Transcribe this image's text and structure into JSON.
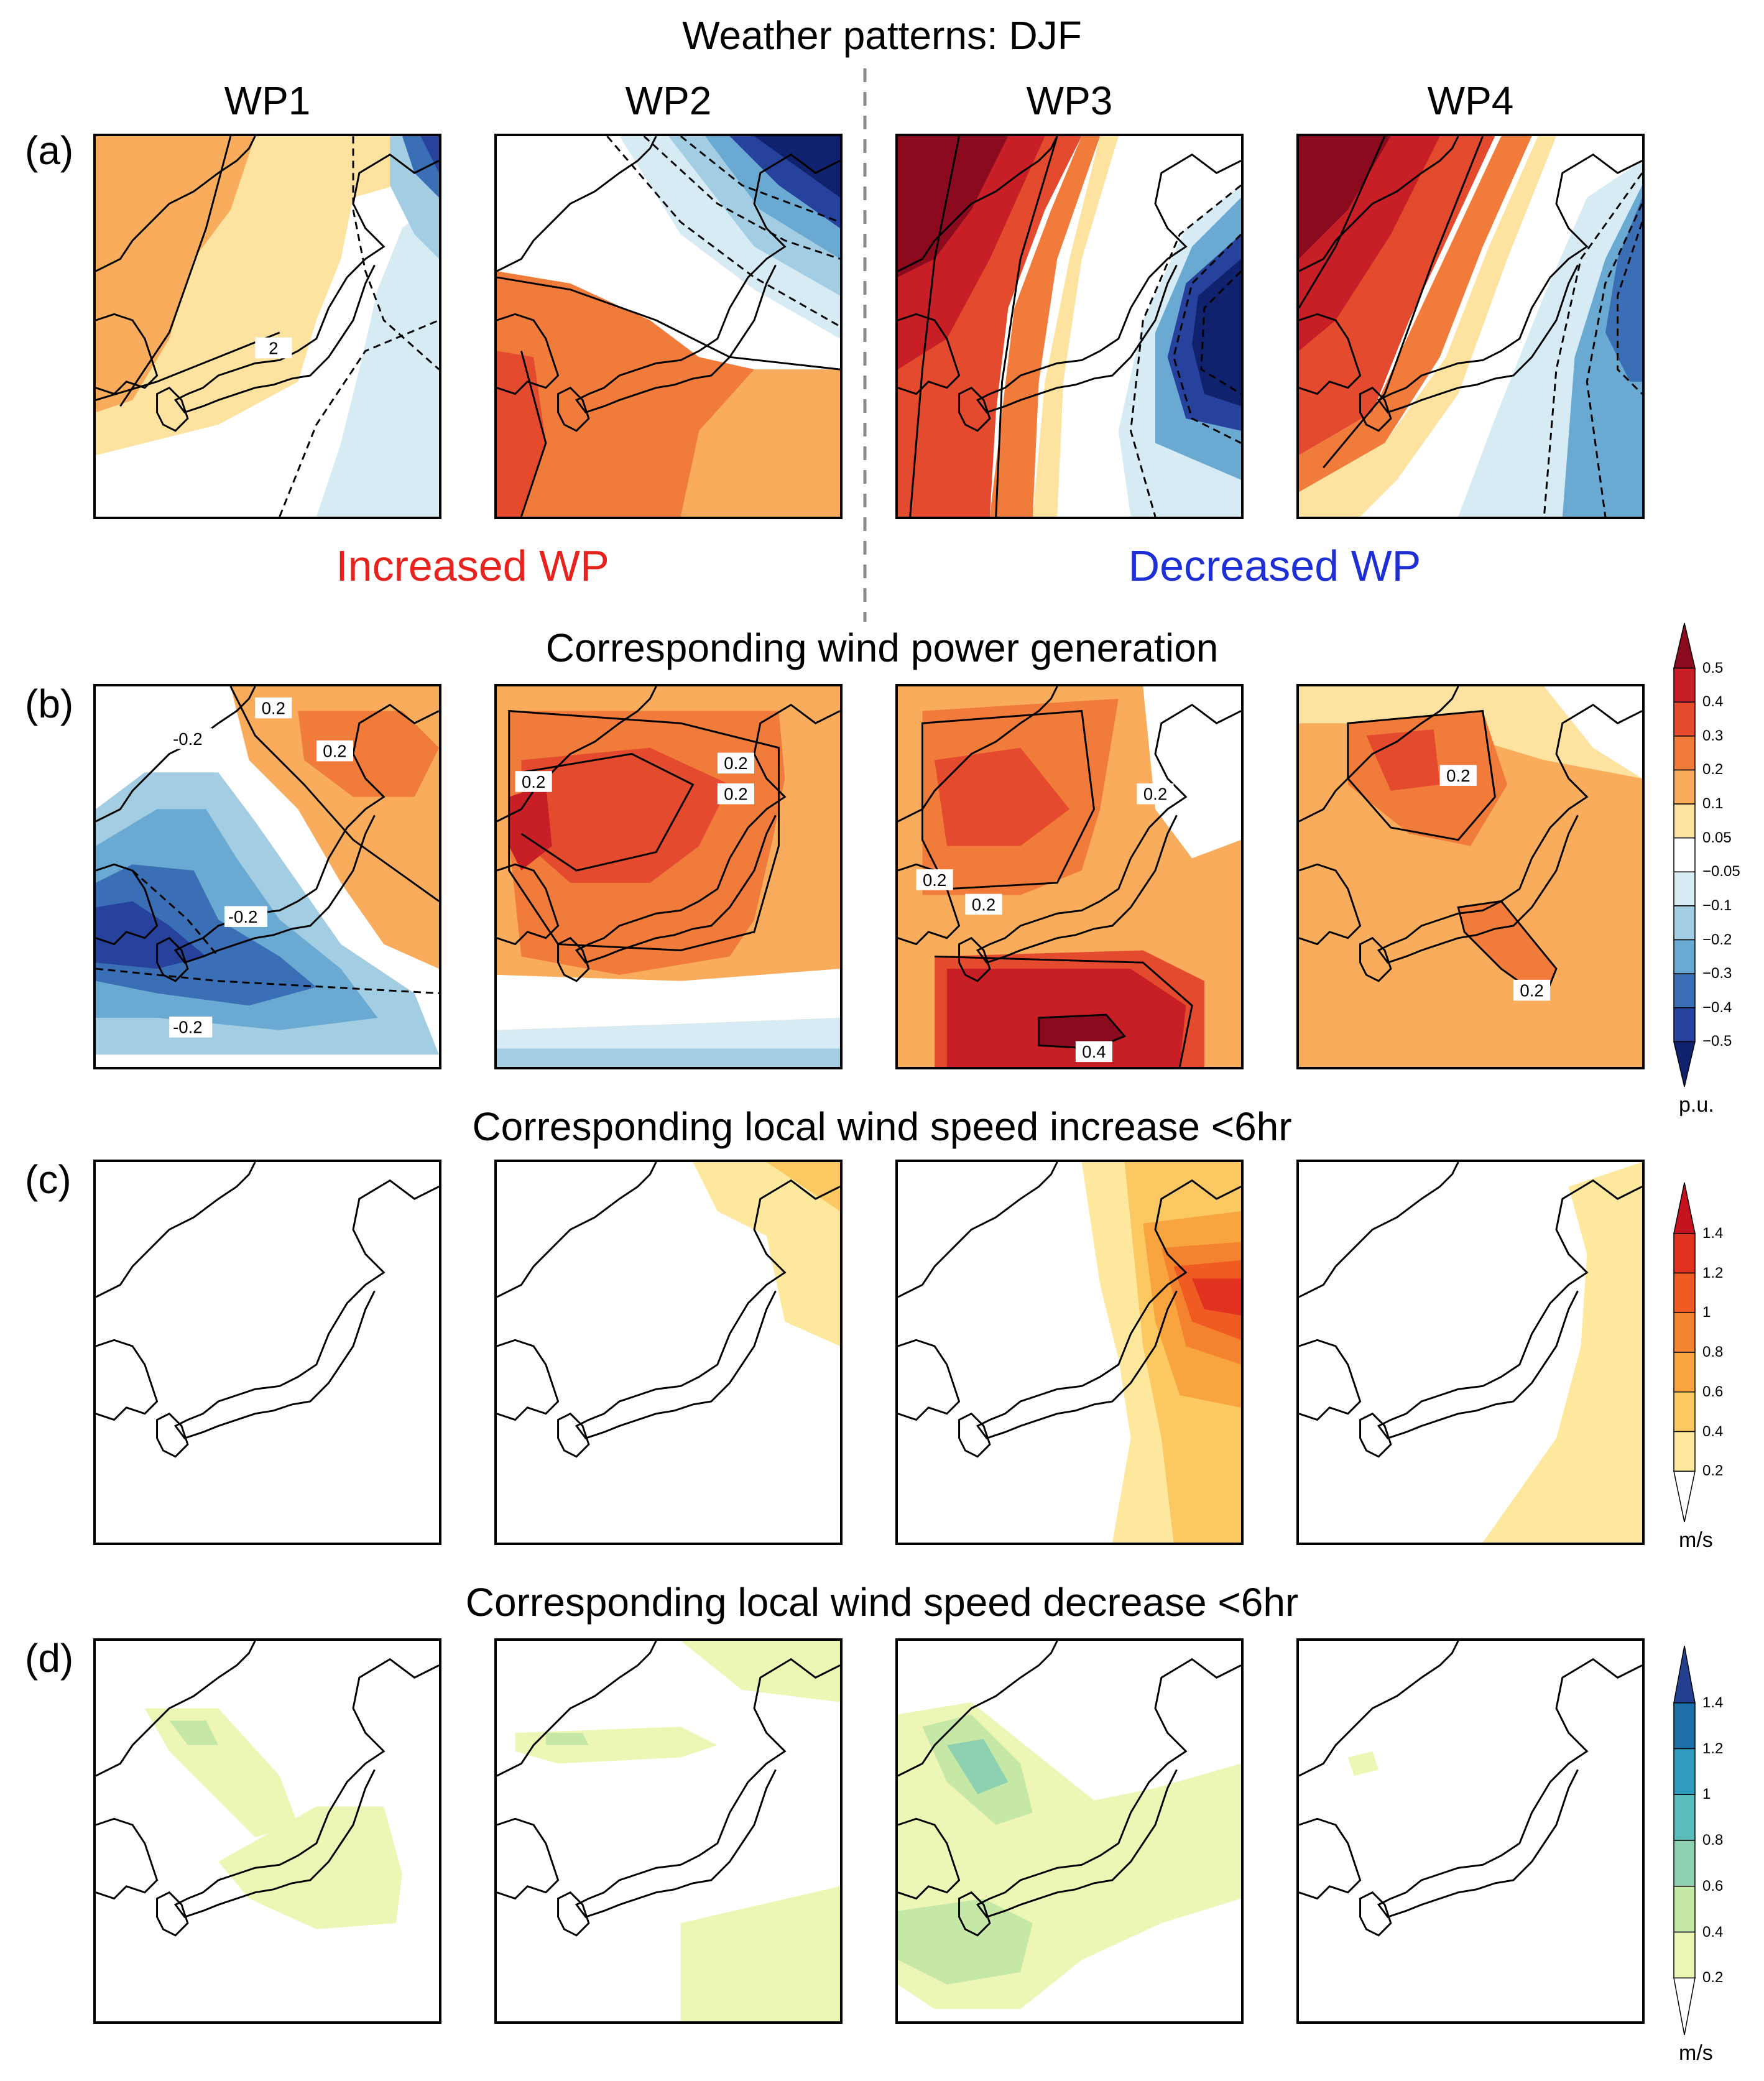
{
  "titles": {
    "main": "Weather patterns: DJF",
    "row_b": "Corresponding wind power generation",
    "row_c": "Corresponding local wind speed increase <6hr",
    "row_d": "Corresponding local wind speed decrease <6hr"
  },
  "columns": [
    "WP1",
    "WP2",
    "WP3",
    "WP4"
  ],
  "row_labels": [
    "(a)",
    "(b)",
    "(c)",
    "(d)"
  ],
  "group_labels": {
    "increased": "Increased WP",
    "decreased": "Decreased WP",
    "increased_color": "#e8221c",
    "decreased_color": "#1f2fd6"
  },
  "contour_labels": {
    "a": [
      [
        "2"
      ],
      [],
      [],
      []
    ],
    "b": [
      [
        "0.2",
        "0.2",
        "-0.2",
        "-0.2",
        "-0.2"
      ],
      [
        "0.2",
        "0.2",
        "0.2"
      ],
      [
        "0.2",
        "0.2",
        "0.2",
        "0.4"
      ],
      [
        "0.2",
        "0.2"
      ]
    ]
  },
  "colorbars": {
    "power": {
      "ticks": [
        "0.5",
        "0.4",
        "0.3",
        "0.2",
        "0.1",
        "0.05",
        "−0.05",
        "−0.1",
        "−0.2",
        "−0.3",
        "−0.4",
        "−0.5"
      ],
      "colors": [
        "#8b0a1e",
        "#c81e26",
        "#e34a2e",
        "#f07b3a",
        "#f9ad5c",
        "#fde2a0",
        "#ffffff",
        "#d6ebf4",
        "#a3cde3",
        "#6aa9d1",
        "#3a6fb5",
        "#26429c",
        "#10226e"
      ],
      "unit": "p.u."
    },
    "increase": {
      "ticks": [
        "1.4",
        "1.2",
        "1",
        "0.8",
        "0.6",
        "0.4",
        "0.2"
      ],
      "colors": [
        "#c4121f",
        "#e0321f",
        "#ef5b22",
        "#f4832f",
        "#f8a540",
        "#fbc862",
        "#fde89e",
        "#ffffff"
      ],
      "unit": "m/s"
    },
    "decrease": {
      "ticks": [
        "1.4",
        "1.2",
        "1",
        "0.8",
        "0.6",
        "0.4",
        "0.2"
      ],
      "colors": [
        "#23408f",
        "#1e6fa8",
        "#2f9bbd",
        "#5bbcbc",
        "#8ed1b1",
        "#c6e8a6",
        "#eef6b6",
        "#ffffff"
      ],
      "unit": "m/s"
    }
  }
}
